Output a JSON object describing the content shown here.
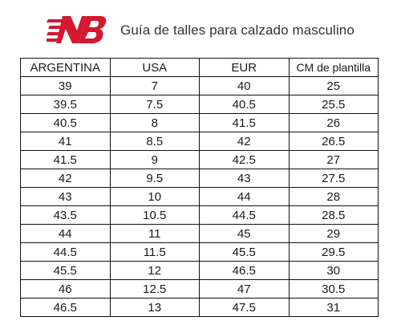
{
  "brand": {
    "logo_icon": "new-balance-logo-icon",
    "logo_color": "#d3182f"
  },
  "header": {
    "title": "Guía de talles para calzado masculino"
  },
  "table": {
    "columns": [
      "ARGENTINA",
      "USA",
      "EUR",
      "CM de plantilla"
    ],
    "rows": [
      [
        "39",
        "7",
        "40",
        "25"
      ],
      [
        "39.5",
        "7.5",
        "40.5",
        "25.5"
      ],
      [
        "40.5",
        "8",
        "41.5",
        "26"
      ],
      [
        "41",
        "8.5",
        "42",
        "26.5"
      ],
      [
        "41.5",
        "9",
        "42.5",
        "27"
      ],
      [
        "42",
        "9.5",
        "43",
        "27.5"
      ],
      [
        "43",
        "10",
        "44",
        "28"
      ],
      [
        "43.5",
        "10.5",
        "44.5",
        "28.5"
      ],
      [
        "44",
        "11",
        "45",
        "29"
      ],
      [
        "44.5",
        "11.5",
        "45.5",
        "29.5"
      ],
      [
        "45.5",
        "12",
        "46.5",
        "30"
      ],
      [
        "46",
        "12.5",
        "47",
        "30.5"
      ],
      [
        "46.5",
        "13",
        "47.5",
        "31"
      ]
    ]
  }
}
